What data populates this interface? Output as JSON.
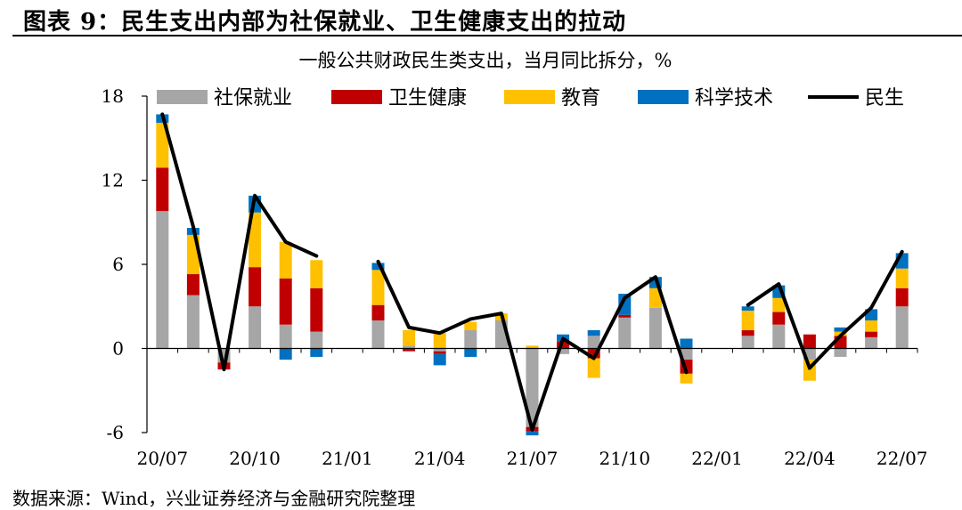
{
  "figure": {
    "title": "图表 9：民生支出内部为社保就业、卫生健康支出的拉动",
    "source": "数据来源：Wind，兴业证券经济与金融研究院整理"
  },
  "chart_data": {
    "type": "bar",
    "subtype": "stacked bar with line overlay",
    "title": "一般公共财政民生类支出，当月同比拆分，%",
    "xlabel": "",
    "ylabel": "",
    "ylim": [
      -6,
      18
    ],
    "yticks": [
      "-6",
      "0",
      "6",
      "12",
      "18"
    ],
    "xtick_labels": [
      "20/07",
      "20/10",
      "21/01",
      "21/04",
      "21/07",
      "21/10",
      "22/01",
      "22/04",
      "22/07"
    ],
    "legend_position": "top",
    "grid": false,
    "categories": [
      "20/07",
      "20/08",
      "20/09",
      "20/10",
      "20/11",
      "20/12",
      "21/01",
      "21/02",
      "21/03",
      "21/04",
      "21/05",
      "21/06",
      "21/07",
      "21/08",
      "21/09",
      "21/10",
      "21/11",
      "21/12",
      "22/01",
      "22/02",
      "22/03",
      "22/04",
      "22/05",
      "22/06",
      "22/07"
    ],
    "series": [
      {
        "name": "社保就业",
        "kind": "bar",
        "color": "#a6a6a6",
        "values": [
          9.8,
          3.8,
          -1.0,
          3.0,
          1.7,
          1.2,
          null,
          2.0,
          0.2,
          -0.2,
          1.3,
          2.0,
          -5.6,
          -0.4,
          0.9,
          2.2,
          2.9,
          -0.8,
          null,
          0.9,
          1.7,
          -0.8,
          -0.6,
          0.8,
          3.0
        ]
      },
      {
        "name": "卫生健康",
        "kind": "bar",
        "color": "#c00000",
        "values": [
          3.1,
          1.5,
          -0.5,
          2.8,
          3.3,
          3.1,
          null,
          1.1,
          -0.2,
          -0.2,
          0.0,
          0.0,
          -0.3,
          0.5,
          -0.7,
          0.2,
          0.0,
          -1.0,
          null,
          0.4,
          0.9,
          1.0,
          0.9,
          0.4,
          1.3
        ]
      },
      {
        "name": "教育",
        "kind": "bar",
        "color": "#ffc000",
        "values": [
          3.2,
          2.8,
          0.0,
          3.9,
          2.6,
          2.0,
          null,
          2.5,
          1.1,
          1.1,
          0.6,
          0.5,
          0.2,
          0.0,
          -1.4,
          0.0,
          1.4,
          -0.7,
          null,
          1.4,
          1.0,
          -1.5,
          0.3,
          0.8,
          1.4
        ]
      },
      {
        "name": "科学技术",
        "kind": "bar",
        "color": "#0070c0",
        "values": [
          0.6,
          0.5,
          0.0,
          1.2,
          -0.8,
          -0.6,
          null,
          0.5,
          0.0,
          -0.8,
          -0.6,
          0.0,
          -0.3,
          0.5,
          0.4,
          1.5,
          0.8,
          0.7,
          null,
          0.3,
          0.9,
          0.0,
          0.3,
          0.8,
          1.1
        ]
      },
      {
        "name": "民生",
        "kind": "line",
        "color": "#000000",
        "values": [
          16.7,
          8.7,
          -1.5,
          10.9,
          7.6,
          6.6,
          null,
          6.2,
          1.5,
          1.1,
          2.1,
          2.5,
          -5.8,
          0.7,
          -0.7,
          3.6,
          5.1,
          -1.7,
          null,
          3.1,
          4.6,
          -1.4,
          0.9,
          2.9,
          6.9
        ]
      }
    ]
  }
}
